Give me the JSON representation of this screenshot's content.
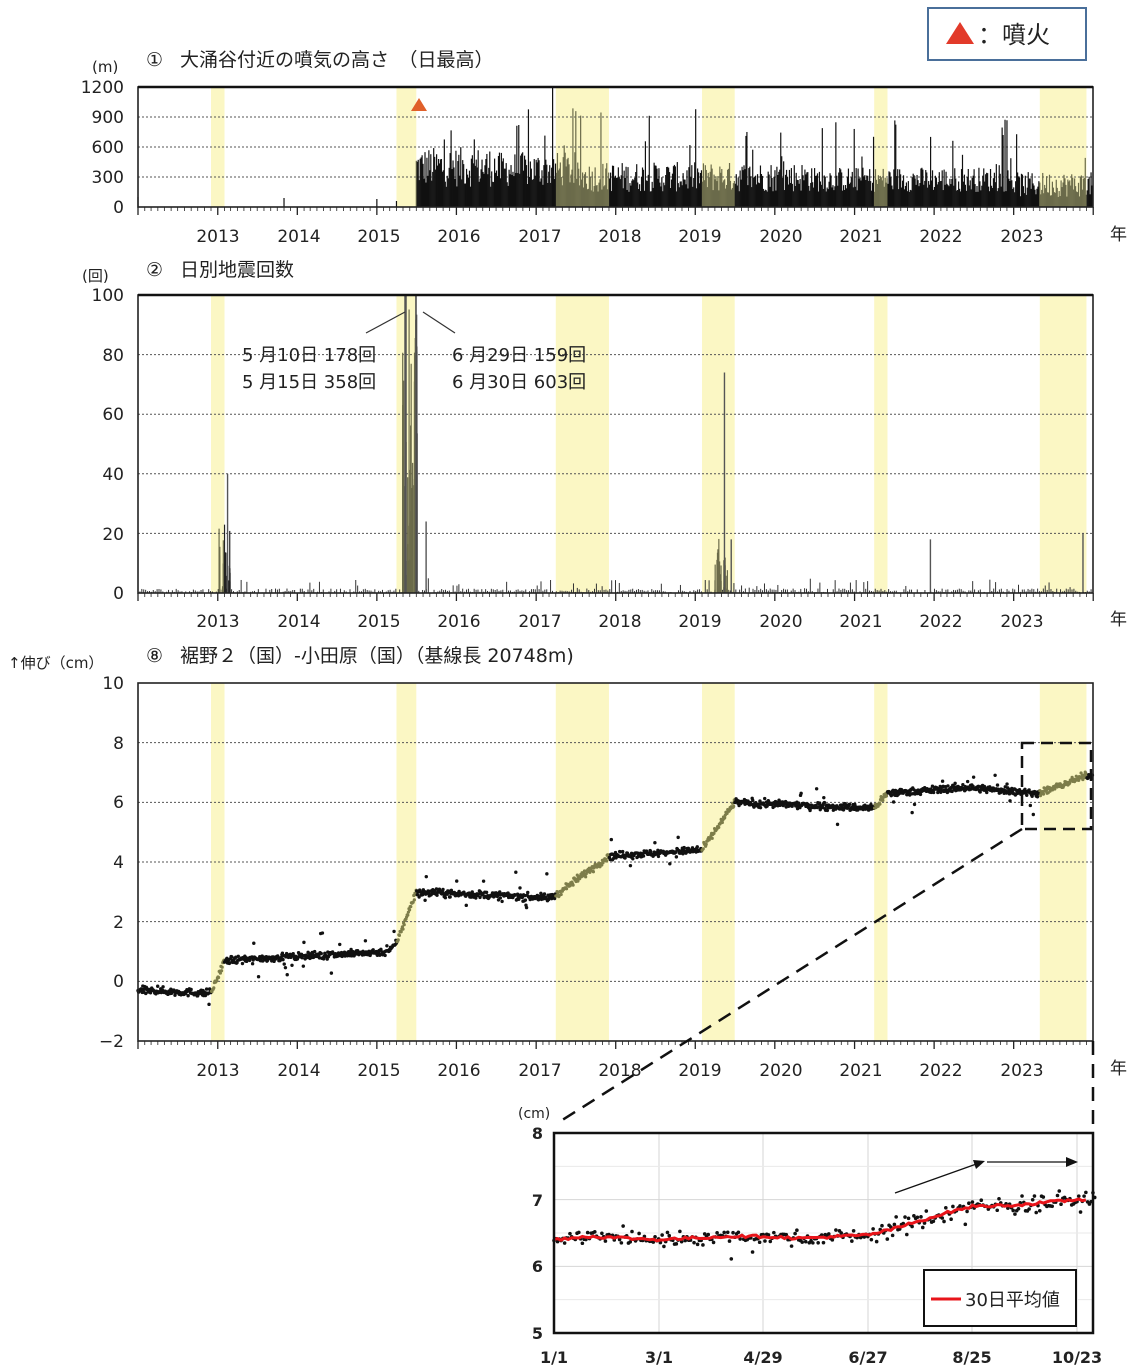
{
  "legend": {
    "marker_label": "：噴火",
    "marker_color": "#e23a2a"
  },
  "highlight_color": "#fbf7c4",
  "axis_unit_label": "年",
  "charts": [
    {
      "id": "plume",
      "number": "①",
      "title": "大涌谷付近の噴気の高さ　（日最高）",
      "unit": "(m)",
      "y_ticks": [
        "1200",
        "900",
        "600",
        "300",
        "0"
      ],
      "x_ticks": [
        "2013",
        "2014",
        "2015",
        "2016",
        "2017",
        "2018",
        "2019",
        "2020",
        "2021",
        "2022",
        "2023"
      ]
    },
    {
      "id": "quakes",
      "number": "②",
      "title": "日別地震回数",
      "unit": "(回)",
      "y_ticks": [
        "100",
        "80",
        "60",
        "40",
        "20",
        "0"
      ],
      "x_ticks": [
        "2013",
        "2014",
        "2015",
        "2016",
        "2017",
        "2018",
        "2019",
        "2020",
        "2021",
        "2022",
        "2023"
      ],
      "annotations": {
        "left_line1": "5 月10日 178回",
        "left_line2": "5 月15日 358回",
        "right_line1": "6 月29日 159回",
        "right_line2": "6 月30日 603回"
      }
    },
    {
      "id": "gnss",
      "number": "⑧",
      "title": "裾野２（国）-小田原（国）（基線長 20748m)",
      "unit": "↑伸び（cm）",
      "y_ticks": [
        "10",
        "8",
        "6",
        "4",
        "2",
        "0",
        "−2"
      ],
      "x_ticks": [
        "2013",
        "2014",
        "2015",
        "2016",
        "2017",
        "2018",
        "2019",
        "2020",
        "2021",
        "2022",
        "2023"
      ]
    }
  ],
  "inset": {
    "unit": "(cm)",
    "y_ticks": [
      "8",
      "7",
      "6",
      "5"
    ],
    "x_ticks": [
      "1/1",
      "3/1",
      "4/29",
      "6/27",
      "8/25",
      "10/23"
    ],
    "legend_label": "30日平均値",
    "line_color": "#e8141a"
  },
  "chart_data": [
    {
      "type": "bar",
      "title": "大涌谷付近の噴気の高さ　（日最高）",
      "ylabel": "(m)",
      "ylim": [
        0,
        1200
      ],
      "xlim": [
        "2012-01-01",
        "2023-12-31"
      ],
      "grid": true,
      "eruption_marker": {
        "date": "2015-06-30"
      },
      "daily_max_series": [
        {
          "period": "2012-01 to 2015-05",
          "typical_value": 0,
          "sparse_peaks": [
            100,
            60,
            90
          ]
        },
        {
          "period": "2015-07 to 2016-06",
          "typical_range": [
            200,
            600
          ],
          "max": 900
        },
        {
          "period": "2016-06 to 2017-06",
          "typical_range": [
            200,
            550
          ],
          "max": 1200
        },
        {
          "period": "2017-06 to 2020-06",
          "typical_range": [
            150,
            450
          ],
          "max": 1000
        },
        {
          "period": "2020-06 to 2022-12",
          "typical_range": [
            150,
            400
          ],
          "max": 900
        },
        {
          "period": "2023",
          "typical_range": [
            100,
            350
          ],
          "max": 800
        }
      ],
      "highlighted_periods": [
        [
          "2012-12",
          "2013-02"
        ],
        [
          "2015-04",
          "2015-07"
        ],
        [
          "2017-04",
          "2017-12"
        ],
        [
          "2019-02",
          "2019-07"
        ],
        [
          "2021-04",
          "2021-06"
        ],
        [
          "2023-05",
          "2023-12"
        ]
      ]
    },
    {
      "type": "bar",
      "title": "日別地震回数",
      "ylabel": "(回)",
      "ylim": [
        0,
        100
      ],
      "xlim": [
        "2012-01-01",
        "2023-12-31"
      ],
      "grid": true,
      "notable_days": [
        {
          "date": "2013-02",
          "value": 40
        },
        {
          "date": "2015-05-10",
          "value": 178
        },
        {
          "date": "2015-05-15",
          "value": 358
        },
        {
          "date": "2015-06-29",
          "value": 159
        },
        {
          "date": "2015-06-30",
          "value": 603
        },
        {
          "date": "2015-08",
          "value": 24
        },
        {
          "date": "2019-05",
          "value": 74
        },
        {
          "date": "2019-06",
          "value": 18
        },
        {
          "date": "2021-12",
          "value": 18
        },
        {
          "date": "2023-11",
          "value": 20
        }
      ],
      "background_level": [
        0,
        3
      ]
    },
    {
      "type": "scatter",
      "title": "裾野２（国）-小田原（国）（基線長 20748m)",
      "ylabel": "↑伸び（cm）",
      "ylim": [
        -2,
        10
      ],
      "xlim": [
        "2012-01-01",
        "2023-12-31"
      ],
      "grid": true,
      "baseline_trend": [
        {
          "date": "2012-01",
          "value": -0.3
        },
        {
          "date": "2012-12",
          "value": -0.4
        },
        {
          "date": "2013-02",
          "value": 0.7
        },
        {
          "date": "2015-03",
          "value": 1.0
        },
        {
          "date": "2015-04",
          "value": 1.3
        },
        {
          "date": "2015-07",
          "value": 3.0
        },
        {
          "date": "2017-03",
          "value": 2.8
        },
        {
          "date": "2017-04",
          "value": 2.9
        },
        {
          "date": "2017-12",
          "value": 4.2
        },
        {
          "date": "2019-02",
          "value": 4.4
        },
        {
          "date": "2019-07",
          "value": 6.0
        },
        {
          "date": "2021-04",
          "value": 5.8
        },
        {
          "date": "2021-06",
          "value": 6.3
        },
        {
          "date": "2022-06",
          "value": 6.5
        },
        {
          "date": "2023-05",
          "value": 6.3
        },
        {
          "date": "2023-12",
          "value": 6.9
        }
      ]
    },
    {
      "type": "line",
      "title": "",
      "series": [
        {
          "name": "30日平均値"
        }
      ],
      "ylabel": "(cm)",
      "ylim": [
        5,
        8
      ],
      "x_ticks": [
        "1/1",
        "3/1",
        "4/29",
        "6/27",
        "8/25",
        "10/23"
      ],
      "moving_average": [
        {
          "x": "1/1",
          "y": 6.4
        },
        {
          "x": "1/20",
          "y": 6.45
        },
        {
          "x": "3/1",
          "y": 6.4
        },
        {
          "x": "4/10",
          "y": 6.45
        },
        {
          "x": "4/29",
          "y": 6.45
        },
        {
          "x": "5/20",
          "y": 6.42
        },
        {
          "x": "6/27",
          "y": 6.47
        },
        {
          "x": "7/10",
          "y": 6.55
        },
        {
          "x": "8/10",
          "y": 6.8
        },
        {
          "x": "8/25",
          "y": 6.9
        },
        {
          "x": "9/20",
          "y": 6.92
        },
        {
          "x": "10/23",
          "y": 7.0
        }
      ]
    }
  ]
}
